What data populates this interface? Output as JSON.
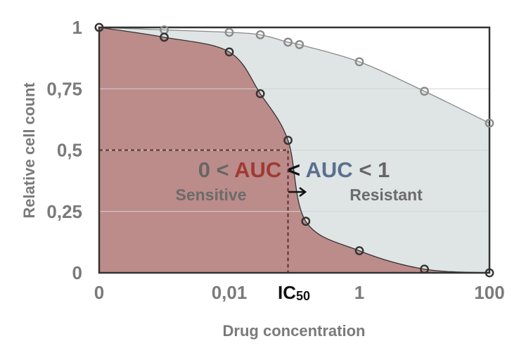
{
  "chart_data": {
    "type": "area",
    "xlabel": "Drug concentration",
    "ylabel": "Relative cell count",
    "x_tick_labels": [
      "0",
      "0,01",
      "1",
      "100"
    ],
    "x_tick_positions": [
      0.0001,
      0.01,
      1,
      100
    ],
    "y_tick_labels": [
      "0",
      "0,25",
      "0,5",
      "0,75",
      "1"
    ],
    "y_ticks": [
      0,
      0.25,
      0.5,
      0.75,
      1
    ],
    "xlim": [
      0.0001,
      100
    ],
    "ylim": [
      0,
      1
    ],
    "x_scale": "log",
    "grid": "horizontal",
    "ic50": {
      "label": "IC",
      "subscript": "50",
      "x": 0.08,
      "y": 0.5
    },
    "annotation": {
      "prefix": "0 <",
      "auc_sensitive": "AUC",
      "middle": "<",
      "auc_resistant": "AUC",
      "suffix": "< 1",
      "sensitive_color": "#a03a36",
      "resistant_color": "#5a7090"
    },
    "series": [
      {
        "name": "Sensitive",
        "color": "#bc8c8a",
        "line_color": "#333333",
        "points": [
          {
            "x": 0.0001,
            "y": 1.0
          },
          {
            "x": 0.001,
            "y": 0.96
          },
          {
            "x": 0.01,
            "y": 0.9
          },
          {
            "x": 0.03,
            "y": 0.73
          },
          {
            "x": 0.08,
            "y": 0.54
          },
          {
            "x": 0.15,
            "y": 0.21
          },
          {
            "x": 1,
            "y": 0.09
          },
          {
            "x": 10,
            "y": 0.015
          },
          {
            "x": 100,
            "y": 0.0
          }
        ]
      },
      {
        "name": "Resistant",
        "color": "#dfe4e4",
        "line_color": "#8a8a8a",
        "points": [
          {
            "x": 0.0001,
            "y": 1.0
          },
          {
            "x": 0.001,
            "y": 0.99
          },
          {
            "x": 0.01,
            "y": 0.98
          },
          {
            "x": 0.03,
            "y": 0.97
          },
          {
            "x": 0.08,
            "y": 0.94
          },
          {
            "x": 0.12,
            "y": 0.93
          },
          {
            "x": 1,
            "y": 0.86
          },
          {
            "x": 10,
            "y": 0.74
          },
          {
            "x": 100,
            "y": 0.61
          }
        ]
      }
    ]
  }
}
